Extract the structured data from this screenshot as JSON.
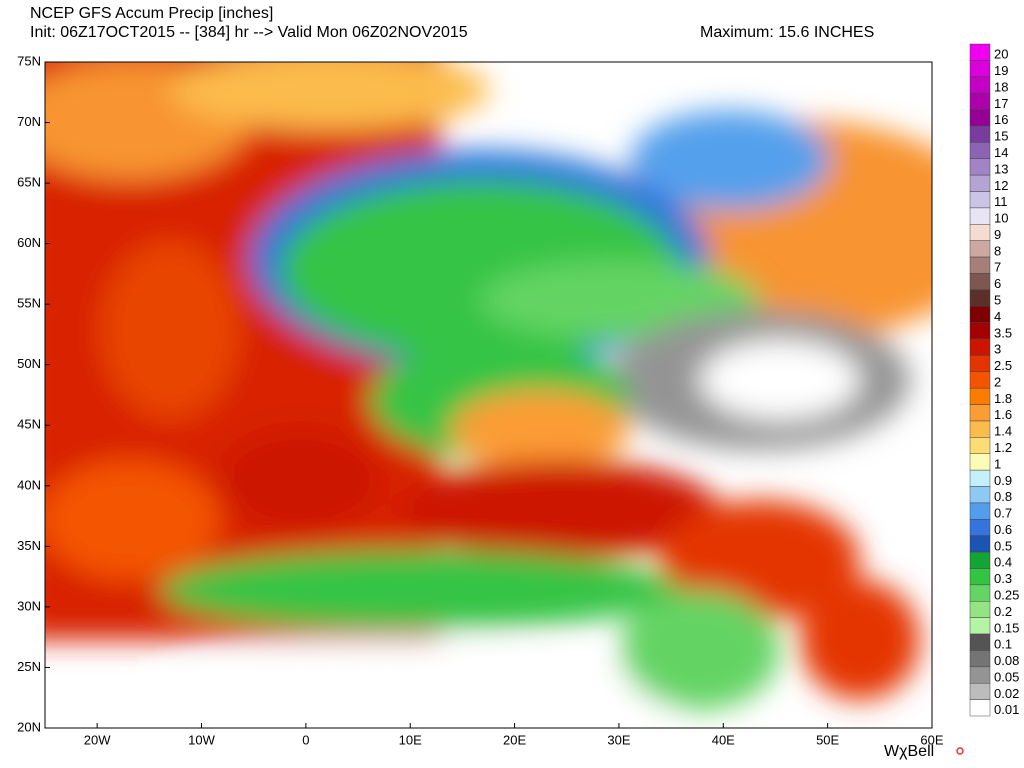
{
  "header": {
    "title": "NCEP GFS Accum Precip [inches]",
    "subtitle": "Init: 06Z17OCT2015 -- [384] hr --> Valid Mon 06Z02NOV2015",
    "maximum": "Maximum: 15.6 INCHES"
  },
  "map": {
    "lat_labels": [
      "75N",
      "70N",
      "65N",
      "60N",
      "55N",
      "50N",
      "45N",
      "40N",
      "35N",
      "30N",
      "25N",
      "20N"
    ],
    "lon_labels": [
      "20W",
      "10W",
      "0",
      "10E",
      "20E",
      "30E",
      "40E",
      "50E",
      "60E"
    ]
  },
  "legend": {
    "items": [
      {
        "label": "20",
        "color": "#f000f0"
      },
      {
        "label": "19",
        "color": "#dc00dc"
      },
      {
        "label": "18",
        "color": "#c400c4"
      },
      {
        "label": "17",
        "color": "#ac00ac"
      },
      {
        "label": "16",
        "color": "#940094"
      },
      {
        "label": "15",
        "color": "#783c9c"
      },
      {
        "label": "14",
        "color": "#8c64b4"
      },
      {
        "label": "13",
        "color": "#a084c4"
      },
      {
        "label": "12",
        "color": "#b4a4d4"
      },
      {
        "label": "11",
        "color": "#ccc4e4"
      },
      {
        "label": "10",
        "color": "#e8e4f4"
      },
      {
        "label": "9",
        "color": "#f4dcd0"
      },
      {
        "label": "8",
        "color": "#cca8a0"
      },
      {
        "label": "7",
        "color": "#a48078"
      },
      {
        "label": "6",
        "color": "#7c5850"
      },
      {
        "label": "5",
        "color": "#5c3028"
      },
      {
        "label": "4",
        "color": "#7c0000"
      },
      {
        "label": "3.5",
        "color": "#a40000"
      },
      {
        "label": "3",
        "color": "#cc1400"
      },
      {
        "label": "2.5",
        "color": "#e43400"
      },
      {
        "label": "2",
        "color": "#f45400"
      },
      {
        "label": "1.8",
        "color": "#fc7c00"
      },
      {
        "label": "1.6",
        "color": "#fc9c34"
      },
      {
        "label": "1.4",
        "color": "#fcbc4c"
      },
      {
        "label": "1.2",
        "color": "#fcdc74"
      },
      {
        "label": "1",
        "color": "#fcfcb4"
      },
      {
        "label": "0.9",
        "color": "#c4f0fc"
      },
      {
        "label": "0.8",
        "color": "#8ccaf4"
      },
      {
        "label": "0.7",
        "color": "#549cec"
      },
      {
        "label": "0.6",
        "color": "#3474dc"
      },
      {
        "label": "0.5",
        "color": "#1c54b4"
      },
      {
        "label": "0.4",
        "color": "#14a434"
      },
      {
        "label": "0.3",
        "color": "#34c444"
      },
      {
        "label": "0.25",
        "color": "#64d464"
      },
      {
        "label": "0.2",
        "color": "#94e484"
      },
      {
        "label": "0.15",
        "color": "#b4f4a4"
      },
      {
        "label": "0.1",
        "color": "#545454"
      },
      {
        "label": "0.08",
        "color": "#747474"
      },
      {
        "label": "0.05",
        "color": "#949494"
      },
      {
        "label": "0.02",
        "color": "#bcbcbc"
      },
      {
        "label": "0.01",
        "color": "#ffffff"
      }
    ]
  },
  "watermark": "WχBell"
}
